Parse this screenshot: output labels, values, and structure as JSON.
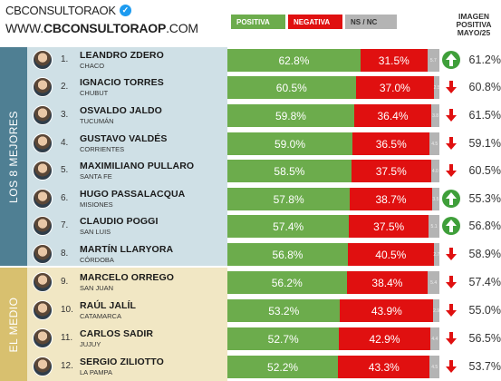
{
  "brand": {
    "handle": "CBCONSULTORAOK",
    "url_prefix": "WWW.",
    "url_bold": "CBCONSULTORAOP",
    "url_suffix": ".COM"
  },
  "legend": {
    "positive": "POSITIVA",
    "negative": "NEGATIVA",
    "ns_nc": "NS / NC"
  },
  "image_header": [
    "IMAGEN",
    "POSITIVA",
    "MAYO/25"
  ],
  "groups": {
    "top": "LOS 8 MEJORES",
    "middle": "EL MEDIO"
  },
  "colors": {
    "positive": "#6cac4c",
    "negative": "#e01010",
    "ns_nc": "#b4b4b4",
    "trend_up": "#3f9f3a",
    "trend_down": "#e01010"
  },
  "rows": [
    {
      "rank": "1.",
      "name": "LEANDRO ZDERO",
      "province": "CHACO",
      "pos": 62.8,
      "pos_label": "62.8%",
      "neg": 31.5,
      "neg_label": "31.5%",
      "ns": 5.7,
      "ns_label": "5.7",
      "trend": "up",
      "trend_icon": "arrow-up-icon",
      "image": "61.2%"
    },
    {
      "rank": "2.",
      "name": "IGNACIO TORRES",
      "province": "CHUBUT",
      "pos": 60.5,
      "pos_label": "60.5%",
      "neg": 37.0,
      "neg_label": "37.0%",
      "ns": 2.5,
      "ns_label": "2.5",
      "trend": "down",
      "trend_icon": "arrow-down-icon",
      "image": "60.8%"
    },
    {
      "rank": "3.",
      "name": "OSVALDO JALDO",
      "province": "TUCUMÁN",
      "pos": 59.8,
      "pos_label": "59.8%",
      "neg": 36.4,
      "neg_label": "36.4%",
      "ns": 3.8,
      "ns_label": "3.8",
      "trend": "down",
      "trend_icon": "arrow-down-icon",
      "image": "61.5%"
    },
    {
      "rank": "4.",
      "name": "GUSTAVO VALDÉS",
      "province": "CORRIENTES",
      "pos": 59.0,
      "pos_label": "59.0%",
      "neg": 36.5,
      "neg_label": "36.5%",
      "ns": 4.5,
      "ns_label": "4.5",
      "trend": "down",
      "trend_icon": "arrow-down-icon",
      "image": "59.1%"
    },
    {
      "rank": "5.",
      "name": "MAXIMILIANO PULLARO",
      "province": "SANTA FE",
      "pos": 58.5,
      "pos_label": "58.5%",
      "neg": 37.5,
      "neg_label": "37.5%",
      "ns": 4.0,
      "ns_label": "4.0",
      "trend": "down",
      "trend_icon": "arrow-down-icon",
      "image": "60.5%"
    },
    {
      "rank": "6.",
      "name": "HUGO PASSALACQUA",
      "province": "MISIONES",
      "pos": 57.8,
      "pos_label": "57.8%",
      "neg": 38.7,
      "neg_label": "38.7%",
      "ns": 3.5,
      "ns_label": "3.5",
      "trend": "up",
      "trend_icon": "arrow-up-icon",
      "image": "55.3%"
    },
    {
      "rank": "7.",
      "name": "CLAUDIO POGGI",
      "province": "SAN LUIS",
      "pos": 57.4,
      "pos_label": "57.4%",
      "neg": 37.5,
      "neg_label": "37.5%",
      "ns": 5.1,
      "ns_label": "5.1",
      "trend": "up",
      "trend_icon": "arrow-up-icon",
      "image": "56.8%"
    },
    {
      "rank": "8.",
      "name": "MARTÍN LLARYORA",
      "province": "CÓRDOBA",
      "pos": 56.8,
      "pos_label": "56.8%",
      "neg": 40.5,
      "neg_label": "40.5%",
      "ns": 2.7,
      "ns_label": "2.7",
      "trend": "down",
      "trend_icon": "arrow-down-icon",
      "image": "58.9%"
    },
    {
      "rank": "9.",
      "name": "MARCELO ORREGO",
      "province": "SAN JUAN",
      "pos": 56.2,
      "pos_label": "56.2%",
      "neg": 38.4,
      "neg_label": "38.4%",
      "ns": 5.4,
      "ns_label": "5.4",
      "trend": "down",
      "trend_icon": "arrow-down-icon",
      "image": "57.4%"
    },
    {
      "rank": "10.",
      "name": "RAÚL JALÍL",
      "province": "CATAMARCA",
      "pos": 53.2,
      "pos_label": "53.2%",
      "neg": 43.9,
      "neg_label": "43.9%",
      "ns": 2.9,
      "ns_label": "2.9",
      "trend": "down",
      "trend_icon": "arrow-down-icon",
      "image": "55.0%"
    },
    {
      "rank": "11.",
      "name": "CARLOS SADIR",
      "province": "JUJUY",
      "pos": 52.7,
      "pos_label": "52.7%",
      "neg": 42.9,
      "neg_label": "42.9%",
      "ns": 4.4,
      "ns_label": "4.4",
      "trend": "down",
      "trend_icon": "arrow-down-icon",
      "image": "56.5%"
    },
    {
      "rank": "12.",
      "name": "SERGIO ZILIOTTO",
      "province": "LA PAMPA",
      "pos": 52.2,
      "pos_label": "52.2%",
      "neg": 43.3,
      "neg_label": "43.3%",
      "ns": 4.5,
      "ns_label": "4.5",
      "trend": "down",
      "trend_icon": "arrow-down-icon",
      "image": "53.7%"
    }
  ]
}
